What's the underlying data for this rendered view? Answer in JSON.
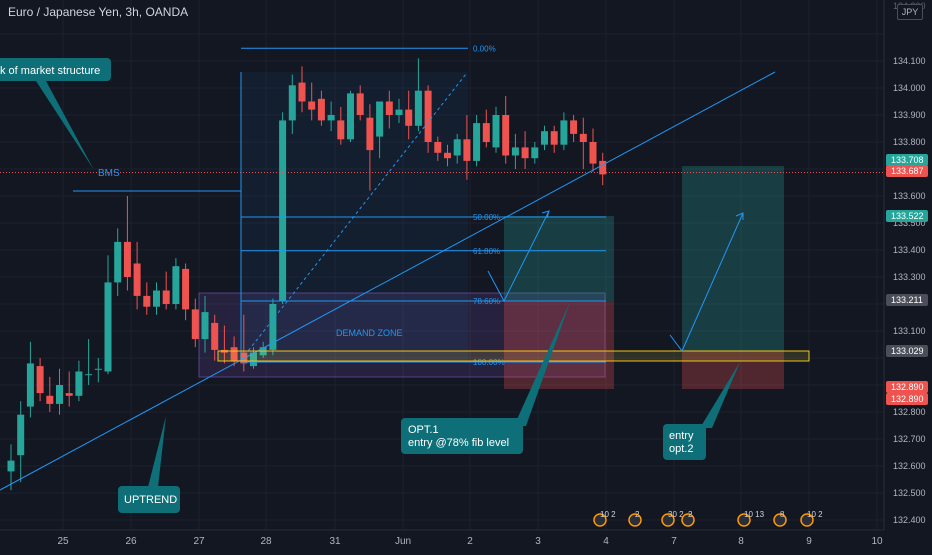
{
  "header": {
    "symbol_title": "Euro / Japanese Yen, 3h, OANDA"
  },
  "currency_badge": "JPY",
  "price_axis": {
    "labels": [
      "134.100",
      "134.000",
      "133.900",
      "133.800",
      "133.600",
      "133.500",
      "133.400",
      "133.300",
      "133.100",
      "132.800",
      "132.700",
      "132.600",
      "132.500",
      "132.400"
    ],
    "top_partial_label": "134.200"
  },
  "time_axis": {
    "labels": [
      "25",
      "26",
      "27",
      "28",
      "31",
      "Jun",
      "2",
      "3",
      "4",
      "7",
      "8",
      "9",
      "10"
    ]
  },
  "price_tags": [
    {
      "label": "133.708",
      "color": "#26a69a"
    },
    {
      "label": "133.687",
      "color": "#ef5350"
    },
    {
      "label": "133.522",
      "color": "#26a69a"
    },
    {
      "label": "133.211",
      "color": "#4a4e59"
    },
    {
      "label": "133.029",
      "color": "#4a4e59"
    },
    {
      "label": "132.890",
      "color": "#ef5350"
    },
    {
      "label": "132.890",
      "color": "#ef5350"
    }
  ],
  "fib_levels": [
    {
      "label": "0.00%",
      "price": 134.147
    },
    {
      "label": "50.00%",
      "price": 133.522
    },
    {
      "label": "61.80%",
      "price": 133.397
    },
    {
      "label": "78.60%",
      "price": 133.211
    },
    {
      "label": "100.00%",
      "price": 132.985
    }
  ],
  "annotations": {
    "bms_label": "BMS",
    "structure_callout": "k of market structure",
    "demand_zone": "DEMAND ZONE",
    "uptrend": "UPTREND",
    "opt1_line1": "OPT.1",
    "opt1_line2": "entry @78% fib level",
    "opt2_line1": "entry",
    "opt2_line2": "opt.2"
  },
  "event_badges": [
    {
      "text": "10 2"
    },
    {
      "text": "2"
    },
    {
      "text": "30 2"
    },
    {
      "text": "2"
    },
    {
      "text": "10 13"
    },
    {
      "text": "8"
    },
    {
      "text": "10 2"
    }
  ],
  "colors": {
    "background": "#131722",
    "bull": "#26a69a",
    "bear": "#ef5350",
    "drawing_blue": "#2196f3",
    "callout_teal": "#0e6f78"
  },
  "chart_data": {
    "type": "candlestick",
    "title": "Euro / Japanese Yen, 3h, OANDA",
    "ylim": [
      132.38,
      134.22
    ],
    "candles": [
      {
        "x": 0,
        "o": 132.58,
        "h": 132.68,
        "c": 132.62,
        "l": 132.51
      },
      {
        "x": 1,
        "o": 132.64,
        "h": 132.84,
        "c": 132.79,
        "l": 132.54
      },
      {
        "x": 2,
        "o": 132.82,
        "h": 133.06,
        "c": 132.98,
        "l": 132.78
      },
      {
        "x": 3,
        "o": 132.97,
        "h": 133.0,
        "c": 132.87,
        "l": 132.84
      },
      {
        "x": 4,
        "o": 132.86,
        "h": 132.93,
        "c": 132.83,
        "l": 132.8
      },
      {
        "x": 5,
        "o": 132.83,
        "h": 132.96,
        "c": 132.9,
        "l": 132.79
      },
      {
        "x": 6,
        "o": 132.87,
        "h": 132.95,
        "c": 132.86,
        "l": 132.82
      },
      {
        "x": 7,
        "o": 132.86,
        "h": 132.99,
        "c": 132.95,
        "l": 132.84
      },
      {
        "x": 8,
        "o": 132.94,
        "h": 133.07,
        "c": 132.94,
        "l": 132.9
      },
      {
        "x": 9,
        "o": 132.96,
        "h": 133.0,
        "c": 132.96,
        "l": 132.91
      },
      {
        "x": 10,
        "o": 132.95,
        "h": 133.38,
        "c": 133.28,
        "l": 132.94
      },
      {
        "x": 11,
        "o": 133.28,
        "h": 133.48,
        "c": 133.43,
        "l": 133.23
      },
      {
        "x": 12,
        "o": 133.43,
        "h": 133.6,
        "c": 133.3,
        "l": 133.25
      },
      {
        "x": 13,
        "o": 133.35,
        "h": 133.43,
        "c": 133.23,
        "l": 133.18
      },
      {
        "x": 14,
        "o": 133.23,
        "h": 133.28,
        "c": 133.19,
        "l": 133.16
      },
      {
        "x": 15,
        "o": 133.19,
        "h": 133.28,
        "c": 133.25,
        "l": 133.16
      },
      {
        "x": 16,
        "o": 133.25,
        "h": 133.32,
        "c": 133.2,
        "l": 133.18
      },
      {
        "x": 17,
        "o": 133.2,
        "h": 133.37,
        "c": 133.34,
        "l": 133.18
      },
      {
        "x": 18,
        "o": 133.33,
        "h": 133.35,
        "c": 133.18,
        "l": 133.14
      },
      {
        "x": 19,
        "o": 133.18,
        "h": 133.22,
        "c": 133.07,
        "l": 133.04
      },
      {
        "x": 20,
        "o": 133.07,
        "h": 133.23,
        "c": 133.17,
        "l": 133.02
      },
      {
        "x": 21,
        "o": 133.13,
        "h": 133.16,
        "c": 133.03,
        "l": 132.99
      },
      {
        "x": 22,
        "o": 133.03,
        "h": 133.12,
        "c": 133.02,
        "l": 132.98
      },
      {
        "x": 23,
        "o": 133.04,
        "h": 133.08,
        "c": 132.99,
        "l": 132.97
      },
      {
        "x": 24,
        "o": 133.02,
        "h": 133.16,
        "c": 132.98,
        "l": 132.95
      },
      {
        "x": 25,
        "o": 132.97,
        "h": 133.04,
        "c": 133.02,
        "l": 132.96
      },
      {
        "x": 26,
        "o": 133.01,
        "h": 133.06,
        "c": 133.04,
        "l": 133.0
      },
      {
        "x": 27,
        "o": 133.03,
        "h": 133.22,
        "c": 133.2,
        "l": 133.01
      },
      {
        "x": 28,
        "o": 133.21,
        "h": 133.91,
        "c": 133.88,
        "l": 133.2
      },
      {
        "x": 29,
        "o": 133.88,
        "h": 134.05,
        "c": 134.01,
        "l": 133.83
      },
      {
        "x": 30,
        "o": 134.02,
        "h": 134.08,
        "c": 133.95,
        "l": 133.91
      },
      {
        "x": 31,
        "o": 133.95,
        "h": 134.02,
        "c": 133.92,
        "l": 133.88
      },
      {
        "x": 32,
        "o": 133.96,
        "h": 133.99,
        "c": 133.88,
        "l": 133.86
      },
      {
        "x": 33,
        "o": 133.88,
        "h": 133.95,
        "c": 133.9,
        "l": 133.84
      },
      {
        "x": 34,
        "o": 133.88,
        "h": 133.93,
        "c": 133.81,
        "l": 133.79
      },
      {
        "x": 35,
        "o": 133.81,
        "h": 133.99,
        "c": 133.98,
        "l": 133.8
      },
      {
        "x": 36,
        "o": 133.98,
        "h": 134.01,
        "c": 133.9,
        "l": 133.88
      },
      {
        "x": 37,
        "o": 133.89,
        "h": 133.94,
        "c": 133.77,
        "l": 133.62
      },
      {
        "x": 38,
        "o": 133.82,
        "h": 133.95,
        "c": 133.95,
        "l": 133.74
      },
      {
        "x": 39,
        "o": 133.95,
        "h": 133.99,
        "c": 133.9,
        "l": 133.85
      },
      {
        "x": 40,
        "o": 133.9,
        "h": 133.96,
        "c": 133.92,
        "l": 133.87
      },
      {
        "x": 41,
        "o": 133.92,
        "h": 133.99,
        "c": 133.86,
        "l": 133.81
      },
      {
        "x": 42,
        "o": 133.86,
        "h": 134.11,
        "c": 133.99,
        "l": 133.84
      },
      {
        "x": 43,
        "o": 133.99,
        "h": 134.01,
        "c": 133.8,
        "l": 133.76
      },
      {
        "x": 44,
        "o": 133.8,
        "h": 133.82,
        "c": 133.76,
        "l": 133.73
      },
      {
        "x": 45,
        "o": 133.76,
        "h": 133.79,
        "c": 133.74,
        "l": 133.71
      },
      {
        "x": 46,
        "o": 133.75,
        "h": 133.83,
        "c": 133.81,
        "l": 133.72
      },
      {
        "x": 47,
        "o": 133.81,
        "h": 133.9,
        "c": 133.73,
        "l": 133.66
      },
      {
        "x": 48,
        "o": 133.73,
        "h": 133.9,
        "c": 133.87,
        "l": 133.71
      },
      {
        "x": 49,
        "o": 133.87,
        "h": 133.92,
        "c": 133.8,
        "l": 133.78
      },
      {
        "x": 50,
        "o": 133.78,
        "h": 133.93,
        "c": 133.9,
        "l": 133.76
      },
      {
        "x": 51,
        "o": 133.9,
        "h": 133.97,
        "c": 133.75,
        "l": 133.72
      },
      {
        "x": 52,
        "o": 133.75,
        "h": 133.83,
        "c": 133.78,
        "l": 133.7
      },
      {
        "x": 53,
        "o": 133.78,
        "h": 133.84,
        "c": 133.74,
        "l": 133.7
      },
      {
        "x": 54,
        "o": 133.74,
        "h": 133.8,
        "c": 133.78,
        "l": 133.72
      },
      {
        "x": 55,
        "o": 133.79,
        "h": 133.86,
        "c": 133.84,
        "l": 133.77
      },
      {
        "x": 56,
        "o": 133.84,
        "h": 133.86,
        "c": 133.79,
        "l": 133.76
      },
      {
        "x": 57,
        "o": 133.79,
        "h": 133.91,
        "c": 133.88,
        "l": 133.77
      },
      {
        "x": 58,
        "o": 133.88,
        "h": 133.9,
        "c": 133.83,
        "l": 133.8
      },
      {
        "x": 59,
        "o": 133.83,
        "h": 133.89,
        "c": 133.8,
        "l": 133.7
      },
      {
        "x": 60,
        "o": 133.8,
        "h": 133.85,
        "c": 133.72,
        "l": 133.69
      },
      {
        "x": 61,
        "o": 133.73,
        "h": 133.76,
        "c": 133.68,
        "l": 133.64
      }
    ]
  }
}
